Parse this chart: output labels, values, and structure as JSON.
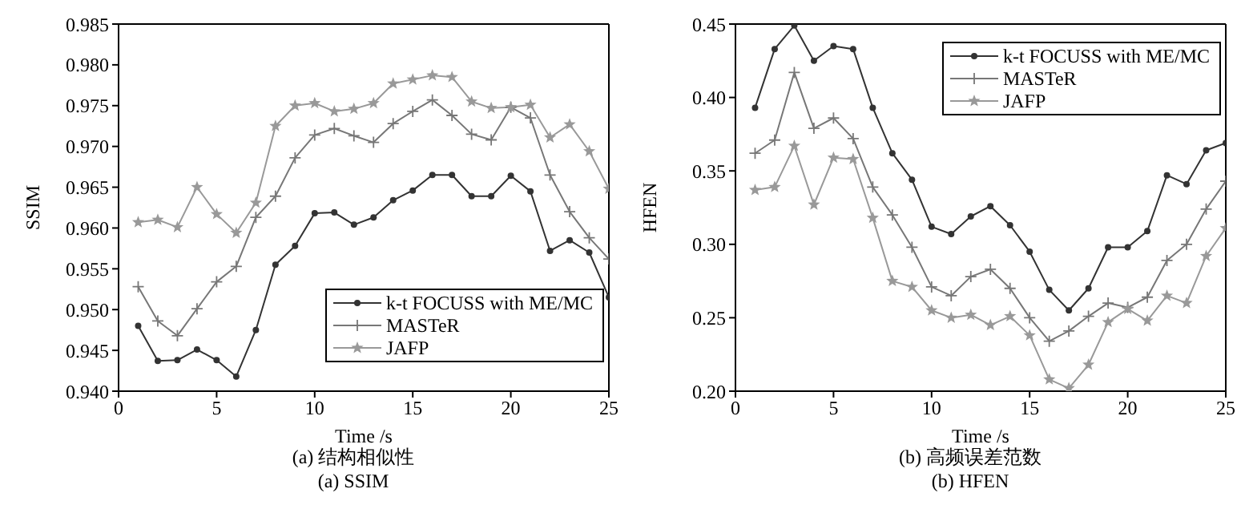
{
  "chart_data": [
    {
      "type": "line",
      "title": "(a) 结构相似性",
      "subtitle": "(a) SSIM",
      "xlabel": "Time /s",
      "ylabel": "SSIM",
      "x": [
        1,
        2,
        3,
        4,
        5,
        6,
        7,
        8,
        9,
        10,
        11,
        12,
        13,
        14,
        15,
        16,
        17,
        18,
        19,
        20,
        21,
        22,
        23,
        24,
        25
      ],
      "xlim": [
        0,
        25
      ],
      "xticks": [
        0,
        5,
        10,
        15,
        20,
        25
      ],
      "ylim": [
        0.94,
        0.985
      ],
      "yticks": [
        {
          "value": 0.94,
          "label": "0.940"
        },
        {
          "value": 0.945,
          "label": "0.945"
        },
        {
          "value": 0.95,
          "label": "0.950"
        },
        {
          "value": 0.955,
          "label": "0.955"
        },
        {
          "value": 0.96,
          "label": "0.960"
        },
        {
          "value": 0.965,
          "label": "0.965"
        },
        {
          "value": 0.97,
          "label": "0.970"
        },
        {
          "value": 0.975,
          "label": "0.975"
        },
        {
          "value": 0.98,
          "label": "0.980"
        },
        {
          "value": 0.985,
          "label": "0.985"
        }
      ],
      "legend": "bottom right",
      "line_style": "solid",
      "series": [
        {
          "name": "k-t FOCUSS with ME/MC",
          "color": "#333333",
          "marker": "circle",
          "values": [
            0.948,
            0.9437,
            0.9438,
            0.9451,
            0.9438,
            0.9418,
            0.9475,
            0.9555,
            0.9578,
            0.9618,
            0.9619,
            0.9604,
            0.9613,
            0.9634,
            0.9646,
            0.9665,
            0.9665,
            0.9639,
            0.9639,
            0.9664,
            0.9645,
            0.9572,
            0.9585,
            0.957,
            0.9515
          ]
        },
        {
          "name": "MASTeR",
          "color": "#777777",
          "marker": "cross",
          "values": [
            0.9528,
            0.9486,
            0.9468,
            0.9501,
            0.9534,
            0.9553,
            0.9613,
            0.9639,
            0.9686,
            0.9714,
            0.9722,
            0.9713,
            0.9705,
            0.9728,
            0.9743,
            0.9757,
            0.9738,
            0.9715,
            0.9708,
            0.9748,
            0.9735,
            0.9665,
            0.962,
            0.9588,
            0.9562
          ]
        },
        {
          "name": "JAFP",
          "color": "#999999",
          "marker": "star",
          "values": [
            0.9607,
            0.961,
            0.9601,
            0.965,
            0.9617,
            0.9594,
            0.9631,
            0.9725,
            0.975,
            0.9753,
            0.9743,
            0.9746,
            0.9753,
            0.9777,
            0.9782,
            0.9787,
            0.9785,
            0.9755,
            0.9747,
            0.9748,
            0.9751,
            0.9711,
            0.9727,
            0.9694,
            0.9648
          ]
        }
      ]
    },
    {
      "type": "line",
      "title": "(b) 高频误差范数",
      "subtitle": "(b) HFEN",
      "xlabel": "Time /s",
      "ylabel": "HFEN",
      "x": [
        1,
        2,
        3,
        4,
        5,
        6,
        7,
        8,
        9,
        10,
        11,
        12,
        13,
        14,
        15,
        16,
        17,
        18,
        19,
        20,
        21,
        22,
        23,
        24,
        25
      ],
      "xlim": [
        0,
        25
      ],
      "xticks": [
        0,
        5,
        10,
        15,
        20,
        25
      ],
      "ylim": [
        0.2,
        0.45
      ],
      "yticks": [
        {
          "value": 0.2,
          "label": "0.20"
        },
        {
          "value": 0.25,
          "label": "0.25"
        },
        {
          "value": 0.3,
          "label": "0.30"
        },
        {
          "value": 0.35,
          "label": "0.35"
        },
        {
          "value": 0.4,
          "label": "0.40"
        },
        {
          "value": 0.45,
          "label": "0.45"
        }
      ],
      "legend": "top right",
      "line_style": "solid",
      "series": [
        {
          "name": "k-t FOCUSS with ME/MC",
          "color": "#333333",
          "marker": "circle",
          "values": [
            0.393,
            0.433,
            0.449,
            0.425,
            0.435,
            0.433,
            0.393,
            0.362,
            0.344,
            0.312,
            0.307,
            0.319,
            0.326,
            0.313,
            0.295,
            0.269,
            0.255,
            0.27,
            0.298,
            0.298,
            0.309,
            0.347,
            0.341,
            0.364,
            0.369
          ]
        },
        {
          "name": "MASTeR",
          "color": "#777777",
          "marker": "cross",
          "values": [
            0.362,
            0.371,
            0.417,
            0.379,
            0.386,
            0.372,
            0.339,
            0.32,
            0.298,
            0.271,
            0.265,
            0.278,
            0.283,
            0.27,
            0.25,
            0.234,
            0.241,
            0.251,
            0.26,
            0.257,
            0.264,
            0.289,
            0.3,
            0.324,
            0.343
          ]
        },
        {
          "name": "JAFP",
          "color": "#999999",
          "marker": "star",
          "values": [
            0.337,
            0.339,
            0.367,
            0.327,
            0.359,
            0.358,
            0.318,
            0.275,
            0.271,
            0.255,
            0.25,
            0.252,
            0.245,
            0.251,
            0.238,
            0.208,
            0.202,
            0.218,
            0.247,
            0.256,
            0.248,
            0.265,
            0.26,
            0.292,
            0.311
          ]
        }
      ]
    }
  ]
}
